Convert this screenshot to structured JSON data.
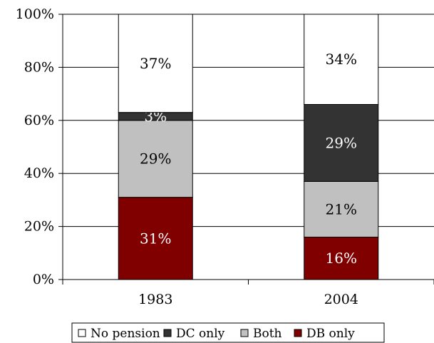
{
  "chart_data": {
    "type": "bar",
    "stacked": true,
    "categories": [
      "1983",
      "2004"
    ],
    "series": [
      {
        "name": "DB only",
        "color": "#800000",
        "values": [
          31,
          16
        ],
        "labels": [
          "31%",
          "16%"
        ],
        "label_color": "#ffffff"
      },
      {
        "name": "Both",
        "color": "#c0c0c0",
        "values": [
          29,
          21
        ],
        "labels": [
          "29%",
          "21%"
        ],
        "label_color": "#000000"
      },
      {
        "name": "DC only",
        "color": "#333333",
        "values": [
          3,
          29
        ],
        "labels": [
          "3%",
          "29%"
        ],
        "label_color": "#ffffff"
      },
      {
        "name": "No pension",
        "color": "#ffffff",
        "values": [
          37,
          34
        ],
        "labels": [
          "37%",
          "34%"
        ],
        "label_color": "#000000"
      }
    ],
    "legend_order": [
      "No pension",
      "DC only",
      "Both",
      "DB only"
    ],
    "y_ticks": [
      "0%",
      "20%",
      "40%",
      "60%",
      "80%",
      "100%"
    ],
    "ylim": [
      0,
      100
    ],
    "grid": true,
    "legend_position": "bottom"
  }
}
